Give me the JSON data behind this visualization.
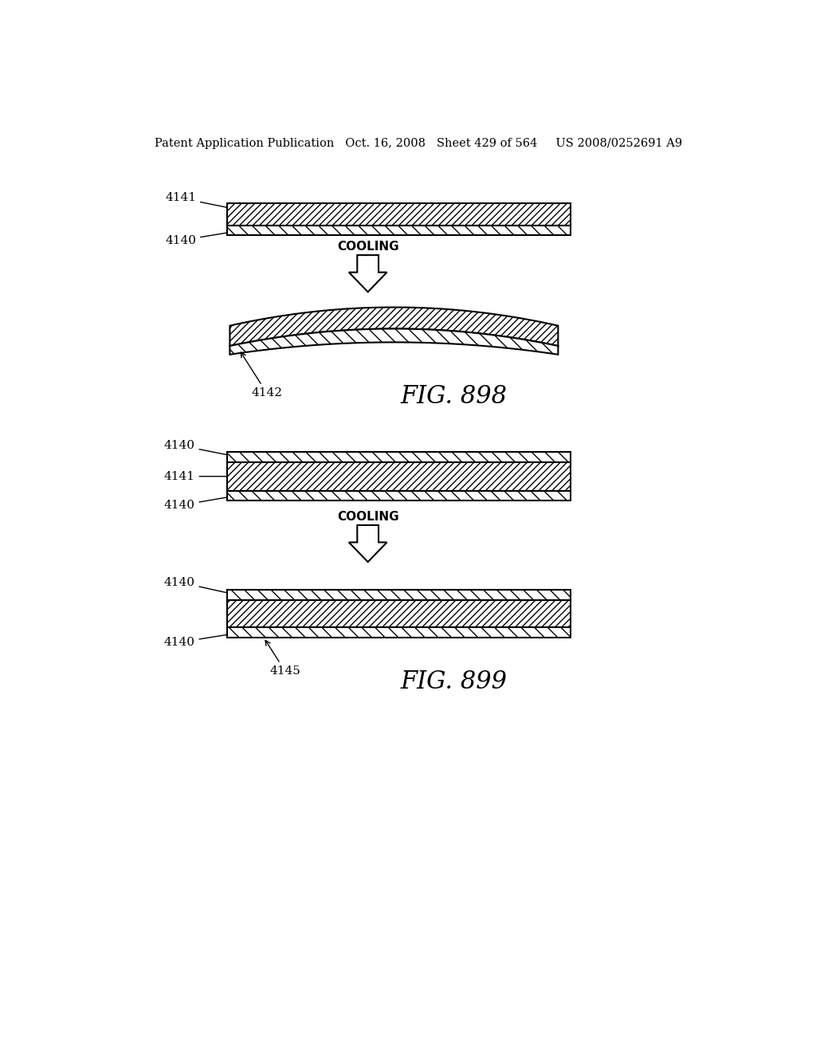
{
  "bg_color": "#ffffff",
  "header_text": "Patent Application Publication   Oct. 16, 2008   Sheet 429 of 564     US 2008/0252691 A9",
  "header_fontsize": 10.5,
  "fig_label_898": "FIG. 898",
  "fig_label_899": "FIG. 899",
  "fig_label_fontsize": 22,
  "label_fontsize": 11,
  "cooling_fontsize": 11,
  "line_color": "#000000",
  "lw": 1.5
}
